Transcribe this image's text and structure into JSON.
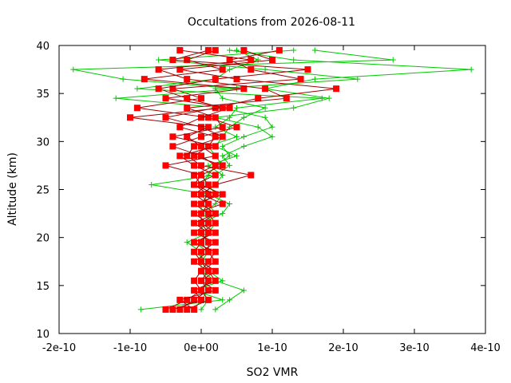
{
  "chart_data": {
    "type": "line",
    "title": "Occultations from 2026-08-11",
    "xlabel": "SO2 VMR",
    "ylabel": "Altitude (km)",
    "xlim": [
      -2e-10,
      4e-10
    ],
    "ylim": [
      10,
      40
    ],
    "x_ticks": [
      -2e-10,
      -1e-10,
      0,
      1e-10,
      2e-10,
      3e-10,
      4e-10
    ],
    "x_tick_labels": [
      "-2e-10",
      "-1e-10",
      "0e+00",
      "1e-10",
      "2e-10",
      "3e-10",
      "4e-10"
    ],
    "y_ticks": [
      10,
      15,
      20,
      25,
      30,
      35,
      40
    ],
    "y_tick_labels": [
      "10",
      "15",
      "20",
      "25",
      "30",
      "35",
      "40"
    ],
    "grid": false,
    "legend": false,
    "colors": {
      "red_series": "#ff0000",
      "red_line": "#a00000",
      "green_series": "#00c800",
      "axis": "#000000"
    },
    "altitudes": [
      12.5,
      13.5,
      14.5,
      15.5,
      16.5,
      17.5,
      18.5,
      19.5,
      20.5,
      21.5,
      22.5,
      23.5,
      24.5,
      25.5,
      26.5,
      27.5,
      28.5,
      29.5,
      30.5,
      31.5,
      32.5,
      33.5,
      34.5,
      35.5,
      36.5,
      37.5,
      38.5,
      39.5
    ],
    "series": [
      {
        "marker": "square",
        "color": "#ff0000",
        "values": [
          -5e-11,
          -2e-11,
          0.0,
          1e-11,
          0.0,
          2e-11,
          1e-11,
          0.0,
          1e-11,
          0.0,
          2e-11,
          0.0,
          1e-11,
          -1e-11,
          0.0,
          3e-11,
          -1e-11,
          1e-11,
          2e-11,
          -3e-11,
          0.0,
          4e-11,
          -5e-11,
          6e-11,
          -8e-11,
          3e-11,
          -2e-11,
          2e-11
        ]
      },
      {
        "marker": "square",
        "color": "#ff0000",
        "values": [
          -3e-11,
          -1e-11,
          1e-11,
          0.0,
          2e-11,
          0.0,
          0.0,
          2e-11,
          -1e-11,
          1e-11,
          -1e-11,
          3e-11,
          0.0,
          2e-11,
          7e-11,
          0.0,
          -2e-11,
          -1e-11,
          3e-11,
          0.0,
          -5e-11,
          2e-11,
          8e-11,
          1.9e-10,
          5e-11,
          -3e-11,
          1e-10,
          6e-11
        ]
      },
      {
        "marker": "square",
        "color": "#ff0000",
        "values": [
          -4e-11,
          0.0,
          -1e-11,
          2e-11,
          1e-11,
          -1e-11,
          1e-11,
          1e-11,
          0.0,
          2e-11,
          1e-11,
          -1e-11,
          3e-11,
          0.0,
          -1e-11,
          2e-11,
          0.0,
          -4e-11,
          0.0,
          5e-11,
          1e-11,
          -9e-11,
          0.0,
          -4e-11,
          1.4e-10,
          7e-11,
          4e-11,
          1.1e-10
        ]
      },
      {
        "marker": "square",
        "color": "#ff0000",
        "values": [
          -2e-11,
          1e-11,
          0.0,
          -1e-11,
          0.0,
          1e-11,
          2e-11,
          -1e-11,
          2e-11,
          0.0,
          0.0,
          1e-11,
          -1e-11,
          1e-11,
          0.0,
          -5e-11,
          2e-11,
          0.0,
          -2e-11,
          1e-11,
          -1e-10,
          3e-11,
          -2e-11,
          -6e-11,
          2e-11,
          1.5e-10,
          -4e-11,
          1e-11
        ]
      },
      {
        "marker": "square",
        "color": "#ff0000",
        "values": [
          -1e-11,
          -3e-11,
          2e-11,
          0.0,
          1e-11,
          0.0,
          -1e-11,
          0.0,
          1e-11,
          -1e-11,
          2e-11,
          0.0,
          2e-11,
          -1e-11,
          2e-11,
          -1e-11,
          -3e-11,
          2e-11,
          -4e-11,
          3e-11,
          2e-11,
          -2e-11,
          1.2e-10,
          9e-11,
          -2e-11,
          -6e-11,
          7e-11,
          -3e-11
        ]
      },
      {
        "marker": "plus",
        "color": "#00c800",
        "values": [
          -8.5e-11,
          3e-11,
          -1e-11,
          3e-11,
          1e-11,
          0.0,
          1e-11,
          -1e-11,
          2e-11,
          0.0,
          3e-11,
          4e-11,
          1e-11,
          -7e-11,
          2e-11,
          4e-11,
          3e-11,
          6e-11,
          1e-10,
          8e-11,
          2e-11,
          1.3e-10,
          1.8e-10,
          9e-11,
          1.6e-10,
          3.8e-10,
          1.3e-10,
          4e-11
        ]
      },
      {
        "marker": "plus",
        "color": "#00c800",
        "values": [
          2e-11,
          4e-11,
          6e-11,
          2e-11,
          0.0,
          1e-11,
          -1e-11,
          0.0,
          1e-11,
          2e-11,
          0.0,
          2e-11,
          3e-11,
          0.0,
          1e-11,
          2e-11,
          4e-11,
          3e-11,
          6e-11,
          1e-10,
          9e-11,
          3e-11,
          -1.2e-10,
          5e-11,
          -1.1e-10,
          -1.8e-10,
          2.7e-10,
          1.6e-10
        ]
      },
      {
        "marker": "plus",
        "color": "#00c800",
        "values": [
          -1e-11,
          0.0,
          1e-11,
          0.0,
          2e-11,
          0.0,
          1e-11,
          1e-11,
          0.0,
          0.0,
          2e-11,
          1e-11,
          0.0,
          2e-11,
          3e-11,
          1e-11,
          5e-11,
          2e-11,
          3e-11,
          4e-11,
          6e-11,
          9e-11,
          3e-11,
          2e-11,
          2.2e-10,
          9e-11,
          -6e-11,
          1.3e-10
        ]
      },
      {
        "marker": "plus",
        "color": "#00c800",
        "values": [
          0.0,
          1e-11,
          0.0,
          1e-11,
          0.0,
          0.0,
          0.0,
          -2e-11,
          1e-11,
          0.0,
          0.0,
          0.0,
          2e-11,
          1e-11,
          0.0,
          3e-11,
          2e-11,
          1e-11,
          5e-11,
          2e-11,
          4e-11,
          5e-11,
          1.7e-10,
          -9e-11,
          2e-11,
          4e-11,
          8e-11,
          5e-11
        ]
      }
    ]
  }
}
